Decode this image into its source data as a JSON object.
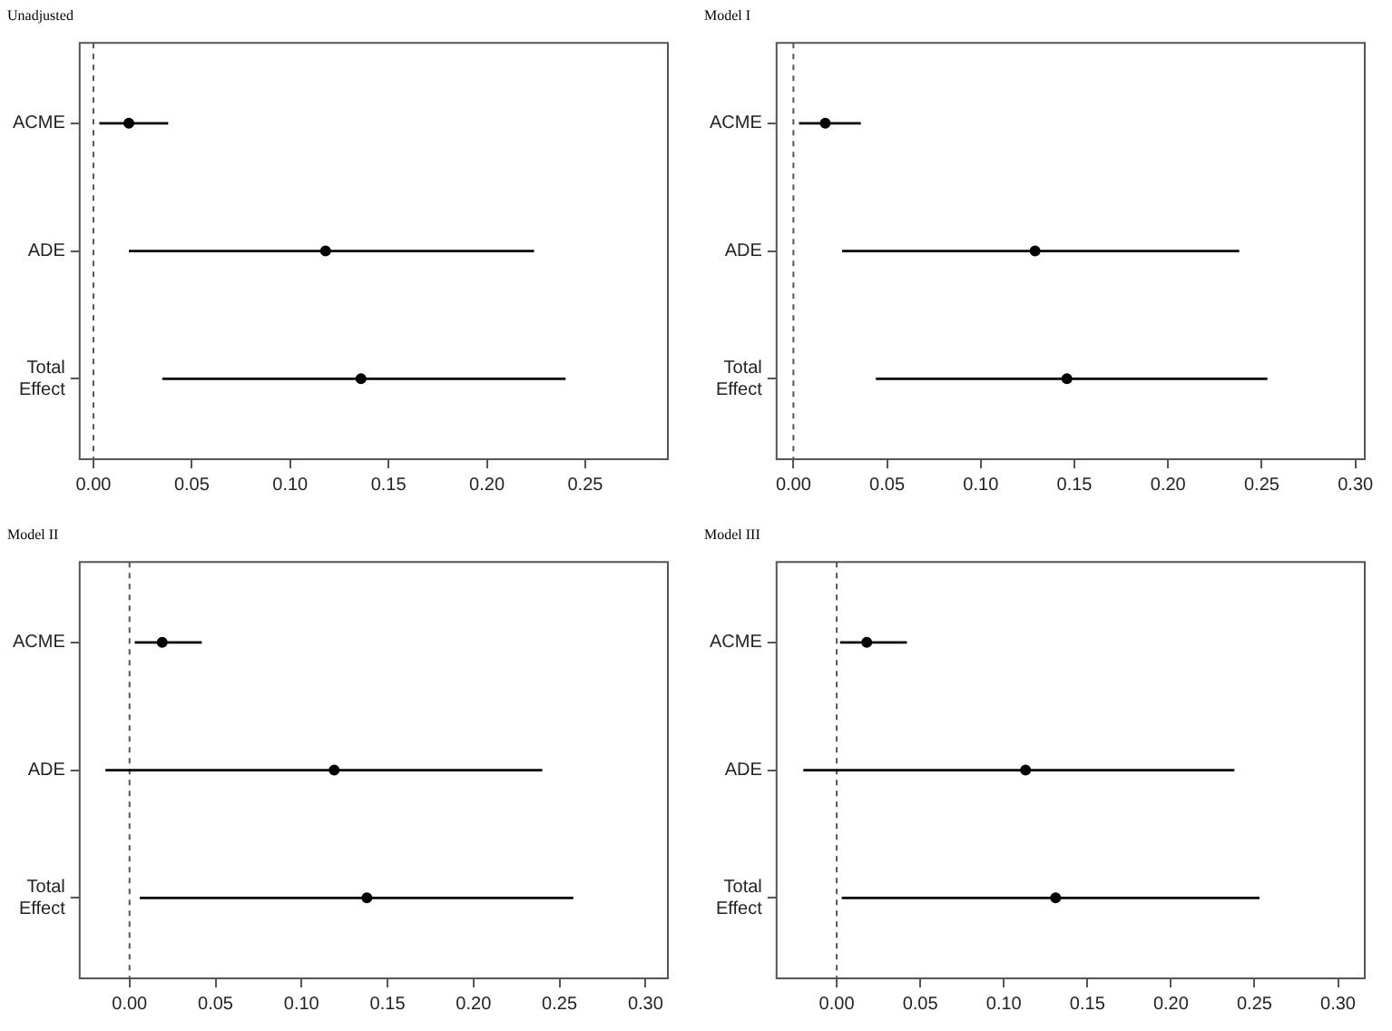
{
  "chart_data": [
    {
      "type": "scatter",
      "orientation": "horizontal",
      "title": "Unadjusted",
      "categories": [
        "ACME",
        "ADE",
        "Total Effect"
      ],
      "values": [
        0.018,
        0.118,
        0.136
      ],
      "errors": [
        [
          0.003,
          0.038
        ],
        [
          0.018,
          0.224
        ],
        [
          0.035,
          0.24
        ]
      ],
      "color": "#000000",
      "marker": "circle",
      "xlim": [
        -0.007,
        0.292
      ],
      "xticks": [
        {
          "value": 0,
          "label": "0.00"
        },
        {
          "value": 0.05,
          "label": "0.05"
        },
        {
          "value": 0.1,
          "label": "0.10"
        },
        {
          "value": 0.15,
          "label": "0.15"
        },
        {
          "value": 0.2,
          "label": "0.20"
        },
        {
          "value": 0.25,
          "label": "0.25"
        }
      ],
      "ref_lines": [
        {
          "axis": "x",
          "value": 0,
          "line_style": "dashed",
          "color": "#555555"
        }
      ]
    },
    {
      "type": "scatter",
      "orientation": "horizontal",
      "title": "Model I",
      "categories": [
        "ACME",
        "ADE",
        "Total Effect"
      ],
      "values": [
        0.017,
        0.129,
        0.146
      ],
      "errors": [
        [
          0.003,
          0.036
        ],
        [
          0.026,
          0.238
        ],
        [
          0.044,
          0.253
        ]
      ],
      "color": "#000000",
      "marker": "circle",
      "xlim": [
        -0.009,
        0.305
      ],
      "xticks": [
        {
          "value": 0,
          "label": "0.00"
        },
        {
          "value": 0.05,
          "label": "0.05"
        },
        {
          "value": 0.1,
          "label": "0.10"
        },
        {
          "value": 0.15,
          "label": "0.15"
        },
        {
          "value": 0.2,
          "label": "0.20"
        },
        {
          "value": 0.25,
          "label": "0.25"
        },
        {
          "value": 0.3,
          "label": "0.30"
        }
      ],
      "ref_lines": [
        {
          "axis": "x",
          "value": 0,
          "line_style": "dashed",
          "color": "#555555"
        }
      ]
    },
    {
      "type": "scatter",
      "orientation": "horizontal",
      "title": "Model II",
      "categories": [
        "ACME",
        "ADE",
        "Total Effect"
      ],
      "values": [
        0.019,
        0.119,
        0.138
      ],
      "errors": [
        [
          0.003,
          0.042
        ],
        [
          -0.014,
          0.24
        ],
        [
          0.006,
          0.258
        ]
      ],
      "color": "#000000",
      "marker": "circle",
      "xlim": [
        -0.029,
        0.313
      ],
      "xticks": [
        {
          "value": 0,
          "label": "0.00"
        },
        {
          "value": 0.05,
          "label": "0.05"
        },
        {
          "value": 0.1,
          "label": "0.10"
        },
        {
          "value": 0.15,
          "label": "0.15"
        },
        {
          "value": 0.2,
          "label": "0.20"
        },
        {
          "value": 0.25,
          "label": "0.25"
        },
        {
          "value": 0.3,
          "label": "0.30"
        }
      ],
      "ref_lines": [
        {
          "axis": "x",
          "value": 0,
          "line_style": "dashed",
          "color": "#555555"
        }
      ]
    },
    {
      "type": "scatter",
      "orientation": "horizontal",
      "title": "Model III",
      "categories": [
        "ACME",
        "ADE",
        "Total Effect"
      ],
      "values": [
        0.018,
        0.113,
        0.131
      ],
      "errors": [
        [
          0.002,
          0.042
        ],
        [
          -0.02,
          0.238
        ],
        [
          0.003,
          0.253
        ]
      ],
      "color": "#000000",
      "marker": "circle",
      "xlim": [
        -0.036,
        0.316
      ],
      "xticks": [
        {
          "value": 0,
          "label": "0.00"
        },
        {
          "value": 0.05,
          "label": "0.05"
        },
        {
          "value": 0.1,
          "label": "0.10"
        },
        {
          "value": 0.15,
          "label": "0.15"
        },
        {
          "value": 0.2,
          "label": "0.20"
        },
        {
          "value": 0.25,
          "label": "0.25"
        },
        {
          "value": 0.3,
          "label": "0.30"
        }
      ],
      "ref_lines": [
        {
          "axis": "x",
          "value": 0,
          "line_style": "dashed",
          "color": "#555555"
        }
      ]
    }
  ]
}
